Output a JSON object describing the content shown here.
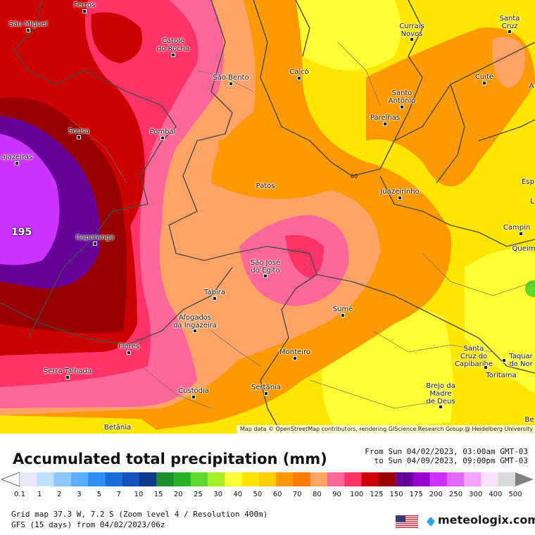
{
  "map": {
    "attribution": "Map data © OpenStreetMap contributors, rendering GIScience Research Group @ Heidelberg University",
    "peak_label": "195",
    "contour_label": "60",
    "cities": [
      {
        "id": "ferros",
        "name": "Ferros"
      },
      {
        "id": "sao-miguel",
        "name": "São Miguel"
      },
      {
        "id": "catole",
        "name": "Catolé\ndo Rocha"
      },
      {
        "id": "currais-novos",
        "name": "Currais\nNovos"
      },
      {
        "id": "santa-cruz-rn",
        "name": "Santa\nCruz"
      },
      {
        "id": "sao-bento",
        "name": "São Bento"
      },
      {
        "id": "caico",
        "name": "Caicó"
      },
      {
        "id": "cuite",
        "name": "Cuité"
      },
      {
        "id": "santo-antonio",
        "name": "Santo\nAntônio"
      },
      {
        "id": "parelhas",
        "name": "Parelhas"
      },
      {
        "id": "sousa",
        "name": "Sousa"
      },
      {
        "id": "pombal",
        "name": "Pombal"
      },
      {
        "id": "cajazeiras",
        "name": "ajazeiras"
      },
      {
        "id": "patos",
        "name": "Patos"
      },
      {
        "id": "juazeirinho",
        "name": "Juazeirinho"
      },
      {
        "id": "esp",
        "name": "Esp"
      },
      {
        "id": "campina",
        "name": "Campin"
      },
      {
        "id": "itaporanga",
        "name": "Itaporanga"
      },
      {
        "id": "queim",
        "name": "Queim"
      },
      {
        "id": "sao-jose-egito",
        "name": "São José\ndo Egito"
      },
      {
        "id": "tabira",
        "name": "Tabira"
      },
      {
        "id": "sume",
        "name": "Sumé"
      },
      {
        "id": "afogados",
        "name": "Afogados\nda Ingazeira"
      },
      {
        "id": "flores",
        "name": "Flores"
      },
      {
        "id": "monteiro",
        "name": "Monteiro"
      },
      {
        "id": "santa-cruz-cap",
        "name": "Santa\nCruz do\nCapibaribe"
      },
      {
        "id": "taquar",
        "name": "Taquar\ndo Nor"
      },
      {
        "id": "toritama",
        "name": "Toritama"
      },
      {
        "id": "serra-talhada",
        "name": "Serra Talhada"
      },
      {
        "id": "custodia",
        "name": "Custódia"
      },
      {
        "id": "sertania",
        "name": "Sertânia"
      },
      {
        "id": "brejo",
        "name": "Brejo da\nMadre\nde Deus"
      },
      {
        "id": "betania",
        "name": "Betânia"
      },
      {
        "id": "be",
        "name": "Be"
      },
      {
        "id": "a-edge",
        "name": "A"
      },
      {
        "id": "l-edge",
        "name": "L"
      }
    ]
  },
  "header": {
    "title": "Accumulated total precipitation (mm)",
    "period_from": "From Sun 04/02/2023, 03:00am GMT-03",
    "period_to": "to Sun 04/09/2023, 09:00pm GMT-03"
  },
  "legend": {
    "ticks": [
      "0.1",
      "1",
      "2",
      "3",
      "5",
      "7",
      "10",
      "15",
      "20",
      "25",
      "30",
      "40",
      "50",
      "60",
      "70",
      "80",
      "90",
      "100",
      "125",
      "150",
      "175",
      "200",
      "250",
      "300",
      "400",
      "500"
    ],
    "colors": [
      "#e6e6f6",
      "#bfe0ff",
      "#8cc8ff",
      "#5aaeff",
      "#2e8ef5",
      "#1a6fdc",
      "#1353b8",
      "#0e3a8c",
      "#1f8f2a",
      "#27b327",
      "#5fd62c",
      "#a6ee2a",
      "#ffff33",
      "#ffe600",
      "#ffcc00",
      "#ff9900",
      "#ff7a00",
      "#ffa366",
      "#ff6699",
      "#ff3366",
      "#cc0000",
      "#990000",
      "#660099",
      "#9900cc",
      "#cc33ff",
      "#e066ff",
      "#f0a6ff",
      "#f8e0ff",
      "#d9d9d9"
    ]
  },
  "footer": {
    "line1": "Grid map 37.3 W, 7.2 S (Zoom level 4 / Resolution 400m)",
    "line2": "GFS (15 days) from 04/02/2023/06z",
    "brand": "meteologix.com"
  }
}
